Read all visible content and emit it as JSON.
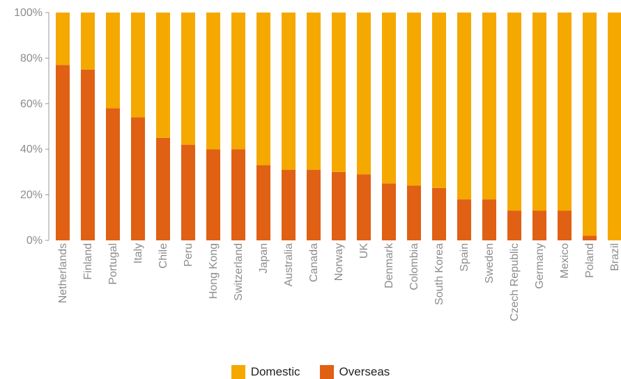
{
  "chart_data": {
    "type": "bar",
    "stacked": true,
    "normalized": true,
    "categories": [
      "Netherlands",
      "Finland",
      "Portugal",
      "Italy",
      "Chile",
      "Peru",
      "Hong Kong",
      "Switzerland",
      "Japan",
      "Australia",
      "Canada",
      "Norway",
      "UK",
      "Denmark",
      "Colombia",
      "South Korea",
      "Spain",
      "Sweden",
      "Czech Republic",
      "Germany",
      "Mexico",
      "Poland",
      "Brazil"
    ],
    "series": [
      {
        "name": "Overseas",
        "color": "#e06014",
        "values": [
          77,
          75,
          58,
          54,
          45,
          42,
          40,
          40,
          33,
          31,
          31,
          30,
          29,
          25,
          24,
          23,
          18,
          18,
          13,
          13,
          13,
          2,
          0
        ]
      },
      {
        "name": "Domestic",
        "color": "#f5a800",
        "values": [
          23,
          25,
          42,
          46,
          55,
          58,
          60,
          60,
          67,
          69,
          69,
          70,
          71,
          75,
          76,
          77,
          82,
          82,
          87,
          87,
          87,
          98,
          100
        ]
      }
    ],
    "yticks": [
      "0%",
      "20%",
      "40%",
      "60%",
      "80%",
      "100%"
    ],
    "ylim": [
      0,
      100
    ],
    "legend": {
      "position": "bottom",
      "items": [
        {
          "label": "Domestic",
          "color": "#f5a800"
        },
        {
          "label": "Overseas",
          "color": "#e06014"
        }
      ]
    }
  }
}
